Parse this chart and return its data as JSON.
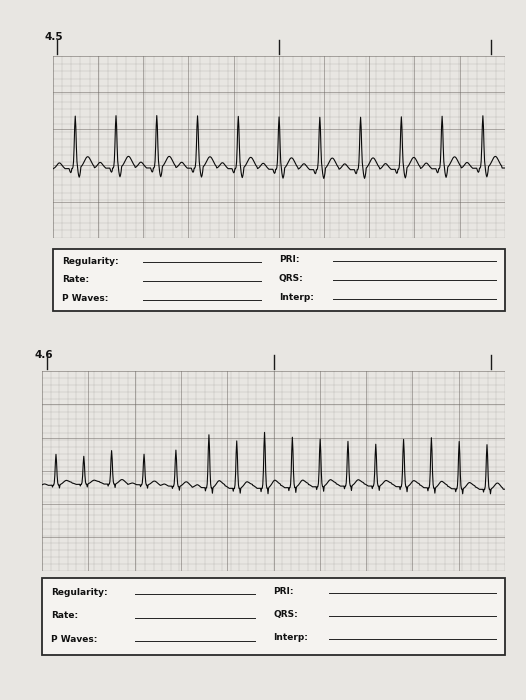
{
  "page_bg": "#e8e6e2",
  "panel_bg": "#e0ddd8",
  "panel1_label": "4.5",
  "panel2_label": "4.6",
  "form_labels_left": [
    "Regularity:",
    "Rate:",
    "P Waves:"
  ],
  "form_labels_right": [
    "PRI:",
    "QRS:",
    "Interp:"
  ],
  "ecg_bg": "#a8a49c",
  "grid_color_major": "#6a6560",
  "grid_color_minor": "#8a8680",
  "ecg_line_color": "#0a0a0a",
  "tick_mark_color": "#1a1a1a",
  "form_bg": "#f5f3f0",
  "form_border": "#2a2a2a",
  "label_fontsize": 6.5,
  "panel_label_fontsize": 7.5,
  "line_color": "#222222"
}
